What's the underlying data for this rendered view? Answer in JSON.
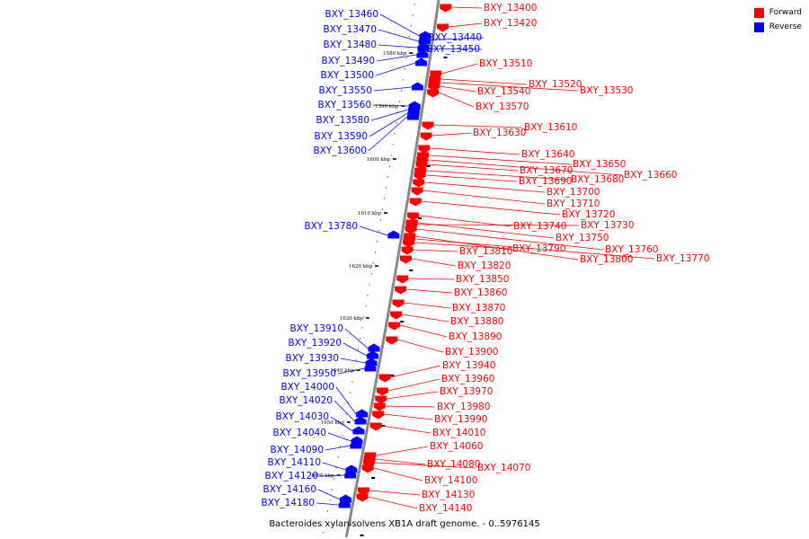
{
  "legend": {
    "forward_label": "Forward",
    "reverse_label": "Reverse",
    "forward_color": "#ff0000",
    "reverse_color": "#0000ff"
  },
  "caption": "Bacteroides xylanisolvens XB1A draft genome. - 0..5976145",
  "ticks": [
    {
      "kbp": 1580,
      "label": "1580 kbp"
    },
    {
      "kbp": 1590,
      "label": "1590 kbp"
    },
    {
      "kbp": 1600,
      "label": "1600 kbp"
    },
    {
      "kbp": 1610,
      "label": "1610 kbp"
    },
    {
      "kbp": 1620,
      "label": "1620 kbp"
    },
    {
      "kbp": 1630,
      "label": "1630 kbp"
    },
    {
      "kbp": 1640,
      "label": "1640 kbp"
    },
    {
      "kbp": 1650,
      "label": "1650 kbp"
    },
    {
      "kbp": 1660,
      "label": "1660 kbp"
    }
  ],
  "genes": [
    {
      "id": "BXY_13400",
      "strand": "forward"
    },
    {
      "id": "BXY_13420",
      "strand": "forward"
    },
    {
      "id": "BXY_13440",
      "strand": "reverse"
    },
    {
      "id": "BXY_13450",
      "strand": "reverse"
    },
    {
      "id": "BXY_13460",
      "strand": "reverse"
    },
    {
      "id": "BXY_13470",
      "strand": "reverse"
    },
    {
      "id": "BXY_13480",
      "strand": "reverse"
    },
    {
      "id": "BXY_13490",
      "strand": "reverse"
    },
    {
      "id": "BXY_13500",
      "strand": "reverse"
    },
    {
      "id": "BXY_13510",
      "strand": "forward"
    },
    {
      "id": "BXY_13520",
      "strand": "forward"
    },
    {
      "id": "BXY_13530",
      "strand": "forward"
    },
    {
      "id": "BXY_13540",
      "strand": "forward"
    },
    {
      "id": "BXY_13550",
      "strand": "reverse"
    },
    {
      "id": "BXY_13560",
      "strand": "reverse"
    },
    {
      "id": "BXY_13570",
      "strand": "forward"
    },
    {
      "id": "BXY_13580",
      "strand": "reverse"
    },
    {
      "id": "BXY_13590",
      "strand": "reverse"
    },
    {
      "id": "BXY_13600",
      "strand": "reverse"
    },
    {
      "id": "BXY_13610",
      "strand": "forward"
    },
    {
      "id": "BXY_13630",
      "strand": "forward"
    },
    {
      "id": "BXY_13640",
      "strand": "forward"
    },
    {
      "id": "BXY_13650",
      "strand": "forward"
    },
    {
      "id": "BXY_13660",
      "strand": "forward"
    },
    {
      "id": "BXY_13670",
      "strand": "forward"
    },
    {
      "id": "BXY_13680",
      "strand": "forward"
    },
    {
      "id": "BXY_13690",
      "strand": "forward"
    },
    {
      "id": "BXY_13700",
      "strand": "forward"
    },
    {
      "id": "BXY_13710",
      "strand": "forward"
    },
    {
      "id": "BXY_13720",
      "strand": "forward"
    },
    {
      "id": "BXY_13730",
      "strand": "forward"
    },
    {
      "id": "BXY_13740",
      "strand": "forward"
    },
    {
      "id": "BXY_13750",
      "strand": "forward"
    },
    {
      "id": "BXY_13760",
      "strand": "forward"
    },
    {
      "id": "BXY_13770",
      "strand": "forward"
    },
    {
      "id": "BXY_13780",
      "strand": "reverse"
    },
    {
      "id": "BXY_13790",
      "strand": "forward"
    },
    {
      "id": "BXY_13800",
      "strand": "forward"
    },
    {
      "id": "BXY_13810",
      "strand": "forward"
    },
    {
      "id": "BXY_13820",
      "strand": "forward"
    },
    {
      "id": "BXY_13850",
      "strand": "forward"
    },
    {
      "id": "BXY_13860",
      "strand": "forward"
    },
    {
      "id": "BXY_13870",
      "strand": "forward"
    },
    {
      "id": "BXY_13880",
      "strand": "forward"
    },
    {
      "id": "BXY_13890",
      "strand": "forward"
    },
    {
      "id": "BXY_13900",
      "strand": "forward"
    },
    {
      "id": "BXY_13910",
      "strand": "reverse"
    },
    {
      "id": "BXY_13920",
      "strand": "reverse"
    },
    {
      "id": "BXY_13930",
      "strand": "reverse"
    },
    {
      "id": "BXY_13940",
      "strand": "forward"
    },
    {
      "id": "BXY_13950",
      "strand": "reverse"
    },
    {
      "id": "BXY_13960",
      "strand": "forward"
    },
    {
      "id": "BXY_13970",
      "strand": "forward"
    },
    {
      "id": "BXY_13980",
      "strand": "forward"
    },
    {
      "id": "BXY_13990",
      "strand": "forward"
    },
    {
      "id": "BXY_14000",
      "strand": "reverse"
    },
    {
      "id": "BXY_14010",
      "strand": "forward"
    },
    {
      "id": "BXY_14020",
      "strand": "reverse"
    },
    {
      "id": "BXY_14030",
      "strand": "reverse"
    },
    {
      "id": "BXY_14040",
      "strand": "reverse"
    },
    {
      "id": "BXY_14060",
      "strand": "forward"
    },
    {
      "id": "BXY_14070",
      "strand": "forward"
    },
    {
      "id": "BXY_14080",
      "strand": "forward"
    },
    {
      "id": "BXY_14090",
      "strand": "reverse"
    },
    {
      "id": "BXY_14100",
      "strand": "forward"
    },
    {
      "id": "BXY_14110",
      "strand": "reverse"
    },
    {
      "id": "BXY_14120",
      "strand": "reverse"
    },
    {
      "id": "BXY_14130",
      "strand": "forward"
    },
    {
      "id": "BXY_14140",
      "strand": "forward"
    },
    {
      "id": "BXY_14160",
      "strand": "reverse"
    },
    {
      "id": "BXY_14180",
      "strand": "reverse"
    }
  ]
}
